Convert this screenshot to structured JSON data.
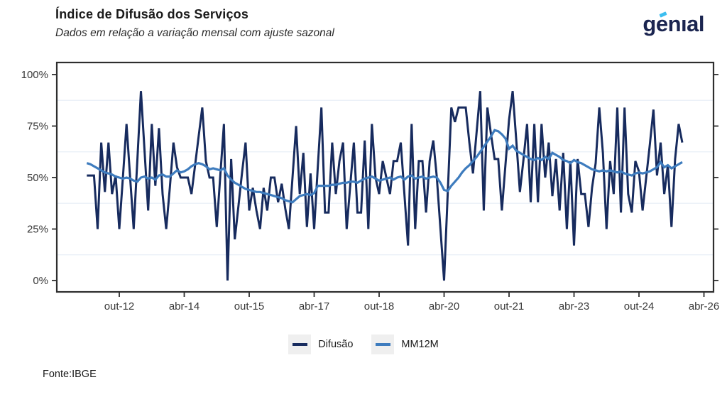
{
  "header": {
    "title": "Índice de Difusão dos Serviços",
    "subtitle": "Dados em relação a variação mensal com ajuste sazonal"
  },
  "logo": {
    "text": "genial",
    "display": "genıal",
    "color": "#1b2550",
    "accent_color": "#3cbef0"
  },
  "axes": {
    "y_ticks": [
      {
        "label": "0%",
        "value": 0
      },
      {
        "label": "25%",
        "value": 25
      },
      {
        "label": "50%",
        "value": 50
      },
      {
        "label": "75%",
        "value": 75
      },
      {
        "label": "100%",
        "value": 100
      }
    ],
    "minor_gridlines": [
      12.5,
      37.5,
      62.5,
      87.5
    ],
    "x_ticks": [
      {
        "label": "out-12",
        "month_index": 9
      },
      {
        "label": "abr-14",
        "month_index": 27
      },
      {
        "label": "out-15",
        "month_index": 45
      },
      {
        "label": "abr-17",
        "month_index": 63
      },
      {
        "label": "out-18",
        "month_index": 81
      },
      {
        "label": "abr-20",
        "month_index": 99
      },
      {
        "label": "out-21",
        "month_index": 117
      },
      {
        "label": "abr-23",
        "month_index": 135
      },
      {
        "label": "out-24",
        "month_index": 153
      },
      {
        "label": "abr-26",
        "month_index": 171
      }
    ]
  },
  "legend": [
    {
      "label": "Difusão",
      "color": "#172b5e"
    },
    {
      "label": "MM12M",
      "color": "#3e7cbe"
    }
  ],
  "source": "Fonte:IBGE",
  "chart_data": {
    "type": "line",
    "title": "Índice de Difusão dos Serviços",
    "subtitle": "Dados em relação a variação mensal com ajuste sazonal",
    "frequency": "monthly",
    "x_start": "jan-2012",
    "x_end": "out-2025",
    "x_tick_labels": [
      "out-12",
      "abr-14",
      "out-15",
      "abr-17",
      "out-18",
      "abr-20",
      "out-21",
      "abr-23",
      "out-24",
      "abr-26"
    ],
    "ylabel": "",
    "ylim": [
      0,
      100
    ],
    "y_tick_labels": [
      "0%",
      "25%",
      "50%",
      "75%",
      "100%"
    ],
    "legend_position": "bottom-center",
    "grid": "minor-horizontal-only",
    "series": [
      {
        "name": "Difusão",
        "color": "#172b5e",
        "values": [
          51,
          51,
          51,
          25,
          67,
          43,
          67,
          42,
          51,
          25,
          50,
          76,
          50,
          25,
          58,
          92,
          63,
          34,
          76,
          46,
          74,
          42,
          25,
          45,
          67,
          55,
          50,
          50,
          50,
          42,
          56,
          70,
          84,
          58,
          50,
          50,
          26,
          51,
          76,
          0,
          59,
          20,
          36,
          52,
          67,
          34,
          45,
          34,
          25,
          45,
          34,
          50,
          50,
          38,
          47,
          35,
          25,
          50,
          75,
          42,
          62,
          26,
          52,
          25,
          55,
          84,
          33,
          33,
          67,
          42,
          58,
          67,
          25,
          46,
          67,
          33,
          33,
          68,
          25,
          76,
          50,
          42,
          58,
          50,
          42,
          58,
          58,
          67,
          42,
          17,
          76,
          25,
          58,
          58,
          33,
          58,
          68,
          50,
          25,
          0,
          42,
          84,
          77,
          84,
          84,
          84,
          67,
          52,
          72,
          92,
          34,
          84,
          71,
          59,
          59,
          34,
          56,
          78,
          92,
          68,
          43,
          59,
          76,
          38,
          76,
          38,
          76,
          50,
          67,
          41,
          59,
          34,
          62,
          25,
          58,
          17,
          59,
          42,
          42,
          26,
          45,
          57,
          84,
          62,
          25,
          58,
          42,
          84,
          33,
          84,
          42,
          33,
          58,
          53,
          34,
          50,
          66,
          83,
          51,
          67,
          42,
          56,
          26,
          59,
          76,
          67
        ]
      },
      {
        "name": "MM12M",
        "color": "#3e7cbe",
        "values": [
          57,
          56.5,
          55.5,
          54.5,
          53.5,
          52.5,
          52,
          51.5,
          50.5,
          50,
          49.5,
          50,
          49.5,
          48.5,
          48,
          50,
          50.5,
          49.5,
          50,
          49,
          51,
          51.5,
          50.5,
          50.5,
          52,
          53.5,
          52.5,
          53,
          54,
          55.5,
          56.5,
          57,
          56.5,
          55.5,
          54,
          54.5,
          54,
          53.5,
          54.5,
          51,
          49,
          47.5,
          46.5,
          45.5,
          44.5,
          44,
          43.5,
          43,
          43,
          42.5,
          42,
          41.5,
          41,
          40.5,
          40,
          39,
          38.5,
          38,
          39.5,
          41,
          41.5,
          42,
          41.5,
          42.5,
          46,
          46,
          46,
          46,
          46.5,
          46.5,
          47,
          47.5,
          47.5,
          48,
          48,
          47.5,
          48.5,
          49.5,
          50,
          50.5,
          49.5,
          48.5,
          49,
          49.5,
          50,
          49,
          50,
          50.5,
          49,
          50.5,
          51,
          49.5,
          50,
          50.5,
          49.5,
          50,
          50.5,
          50,
          47.5,
          44,
          43.5,
          46,
          48,
          50,
          52.5,
          54.5,
          56,
          58,
          60,
          62.5,
          65,
          67.5,
          70,
          73,
          72.5,
          71,
          69,
          64,
          65.5,
          63,
          62,
          61,
          60,
          59,
          58.5,
          59.5,
          58.5,
          60,
          59,
          62,
          61,
          60,
          58.5,
          58,
          57,
          58.5,
          57.5,
          57,
          56,
          55,
          54,
          53.5,
          53,
          53.5,
          53,
          53.5,
          53,
          52.5,
          53,
          52,
          51.5,
          51,
          52,
          52.5,
          52,
          52.5,
          53,
          54,
          55,
          57.5,
          55,
          56,
          54.5,
          55.5,
          56.5,
          57.5
        ]
      }
    ]
  }
}
